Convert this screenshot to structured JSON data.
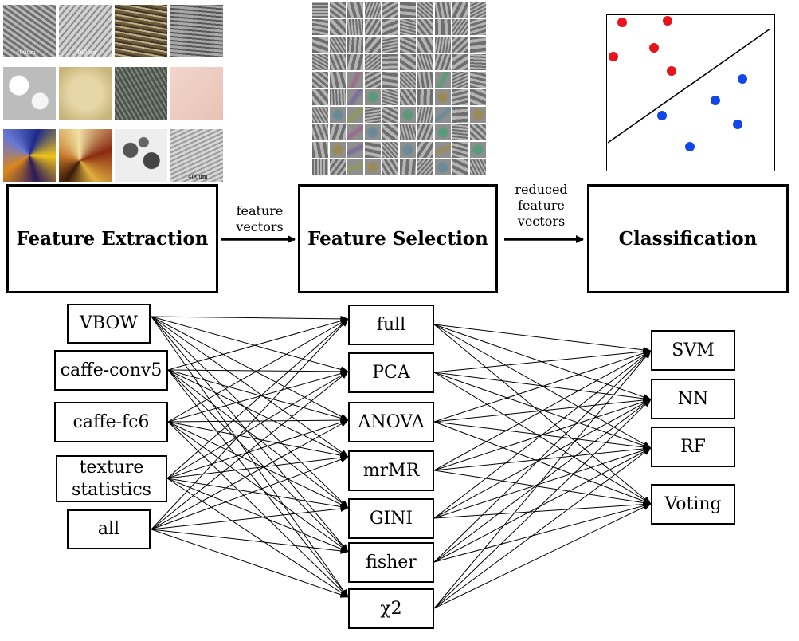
{
  "stages": {
    "extraction": "Feature Extraction",
    "selection": "Feature Selection",
    "classification": "Classification"
  },
  "arrow_labels": {
    "first": [
      "feature",
      "vectors"
    ],
    "second": [
      "reduced",
      "feature",
      "vectors"
    ]
  },
  "extractors": [
    "VBOW",
    "caffe-conv5",
    "caffe-fc6",
    "texture statistics",
    "all"
  ],
  "selectors": [
    "full",
    "PCA",
    "ANOVA",
    "mrMR",
    "GINI",
    "fisher",
    "χ2"
  ],
  "classifiers": [
    "SVM",
    "NN",
    "RF",
    "Voting"
  ],
  "colors": {
    "class_a": "#e8131b",
    "class_b": "#1346e8",
    "line": "#000000"
  }
}
